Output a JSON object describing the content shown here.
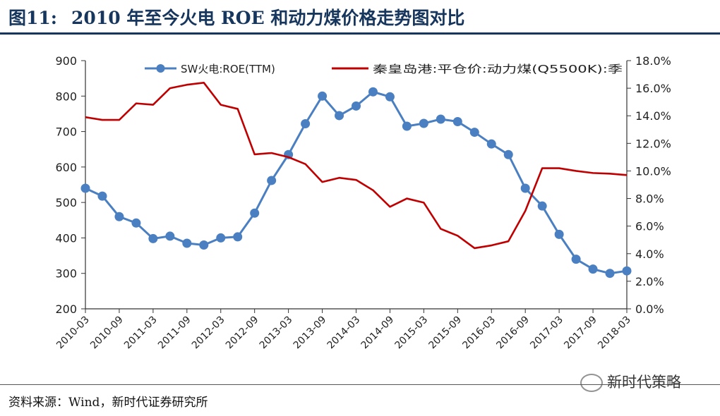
{
  "figure": {
    "label": "图11:",
    "title": "2010 年至今火电 ROE 和动力煤价格走势图对比",
    "source": "资料来源：Wind，新时代证券研究所",
    "watermark": "新时代策略"
  },
  "colors": {
    "title": "#17365d",
    "roe_series": "#4a7fc1",
    "coal_series": "#c00000",
    "axis": "#333333"
  },
  "chart_data": {
    "type": "line",
    "title": "",
    "xlabel": "",
    "ylabel": "",
    "legend_position": "top",
    "grid": false,
    "x_ticks": [
      "2010-03",
      "2010-09",
      "2011-03",
      "2011-09",
      "2012-03",
      "2012-09",
      "2013-03",
      "2013-09",
      "2014-03",
      "2014-09",
      "2015-03",
      "2015-09",
      "2016-03",
      "2016-09",
      "2017-03",
      "2017-09",
      "2018-03"
    ],
    "y_left": {
      "range": [
        200,
        900
      ],
      "ticks": [
        "200",
        "300",
        "400",
        "500",
        "600",
        "700",
        "800",
        "900"
      ]
    },
    "y_right": {
      "range": [
        0,
        18
      ],
      "ticks": [
        "0.0%",
        "2.0%",
        "4.0%",
        "6.0%",
        "8.0%",
        "10.0%",
        "12.0%",
        "14.0%",
        "16.0%",
        "18.0%"
      ],
      "unit": "%"
    },
    "x_count": 33,
    "series": [
      {
        "name": "SW火电:ROE(TTM)",
        "axis": "left",
        "marker": "circle",
        "values": [
          540,
          518,
          460,
          442,
          398,
          405,
          385,
          380,
          400,
          403,
          470,
          562,
          635,
          722,
          800,
          745,
          772,
          812,
          798,
          715,
          723,
          735,
          728,
          698,
          665,
          635,
          540,
          490,
          410,
          340,
          312,
          300,
          307
        ]
      },
      {
        "name": "秦皇岛港:平仓价:动力煤(Q5500K):季",
        "axis": "right",
        "marker": "none",
        "values": [
          13.9,
          13.7,
          13.7,
          14.9,
          14.8,
          16.0,
          16.25,
          16.4,
          14.8,
          14.5,
          11.2,
          11.3,
          11.0,
          10.5,
          9.2,
          9.5,
          9.35,
          8.6,
          7.4,
          8.0,
          7.7,
          5.8,
          5.3,
          4.4,
          4.6,
          4.9,
          7.1,
          10.2,
          10.2,
          10.0,
          9.85,
          9.8,
          9.7
        ]
      }
    ]
  }
}
